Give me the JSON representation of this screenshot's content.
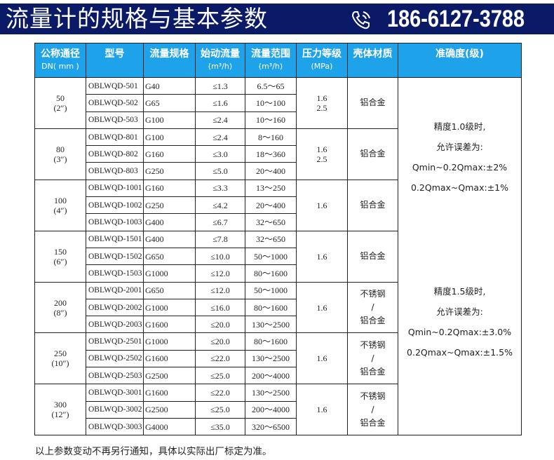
{
  "header": {
    "title": "流量计的规格与基本参数",
    "phone": "186-6127-3788",
    "phone_icon": "phone-icon"
  },
  "table": {
    "columns": [
      {
        "label": "公称通径",
        "sub": "DN( mm )"
      },
      {
        "label": "型号",
        "sub": ""
      },
      {
        "label": "流量规格",
        "sub": ""
      },
      {
        "label": "始动流量",
        "sub": "(m³/h)"
      },
      {
        "label": "流量范围",
        "sub": "(m³/h)"
      },
      {
        "label": "压力等级",
        "sub": "(MPa)"
      },
      {
        "label": "壳体材质",
        "sub": ""
      },
      {
        "label": "准确度(级)",
        "sub": ""
      }
    ],
    "groups": [
      {
        "dn": "50",
        "inch": "(2″)",
        "pressure": [
          "1.6",
          "2.5"
        ],
        "material": [
          "铝合金"
        ],
        "rows": [
          [
            "OBLWQD-501",
            "G40",
            "≤1.3",
            "6.5～65"
          ],
          [
            "OBLWQD-502",
            "G65",
            "≤1.6",
            "10～100"
          ],
          [
            "OBLWQD-503",
            "G100",
            "≤2.4",
            "10～160"
          ]
        ]
      },
      {
        "dn": "80",
        "inch": "(3″)",
        "pressure": [
          "1.6",
          "2.5"
        ],
        "material": [
          "铝合金"
        ],
        "rows": [
          [
            "OBLWQD-801",
            "G100",
            "≤2.4",
            "8～160"
          ],
          [
            "OBLWQD-802",
            "G160",
            "≤3.0",
            "18～360"
          ],
          [
            "OBLWQD-803",
            "G250",
            "≤5.0",
            "20～400"
          ]
        ]
      },
      {
        "dn": "100",
        "inch": "(4″)",
        "pressure": [
          "1.6"
        ],
        "material": [
          "铝合金"
        ],
        "rows": [
          [
            "OBLWQD-1001",
            "G160",
            "≤3.3",
            "13～250"
          ],
          [
            "OBLWQD-1002",
            "G250",
            "≤4.2",
            "20～400"
          ],
          [
            "OBLWQD-1003",
            "G400",
            "≤6.7",
            "32～650"
          ]
        ]
      },
      {
        "dn": "150",
        "inch": "(6″)",
        "pressure": [
          "1.6"
        ],
        "material": [
          "铝合金"
        ],
        "rows": [
          [
            "OBLWQD-1501",
            "G400",
            "≤7.8",
            "32～650"
          ],
          [
            "OBLWQD-1502",
            "G650",
            "≤10.0",
            "50～1000"
          ],
          [
            "OBLWQD-1503",
            "G1000",
            "≤12.0",
            "80～1600"
          ]
        ]
      },
      {
        "dn": "200",
        "inch": "(8″)",
        "pressure": [
          "1.6"
        ],
        "material": [
          "不锈钢",
          "/",
          "铝合金"
        ],
        "rows": [
          [
            "OBLWQD-2001",
            "G650",
            "≤12.0",
            "50～1000"
          ],
          [
            "OBLWQD-2002",
            "G1000",
            "≤16.0",
            "80～1600"
          ],
          [
            "OBLWQD-2003",
            "G1600",
            "≤20.0",
            "130～2500"
          ]
        ]
      },
      {
        "dn": "250",
        "inch": "(10″)",
        "pressure": [
          "1.6"
        ],
        "material": [
          "不锈钢",
          "/",
          "铝合金"
        ],
        "rows": [
          [
            "OBLWQD-2501",
            "G1000",
            "≤20.0",
            "80～1600"
          ],
          [
            "OBLWQD-2502",
            "G1600",
            "≤22.0",
            "130～2500"
          ],
          [
            "OBLWQD-2503",
            "G2500",
            "≤25.0",
            "200～4000"
          ]
        ]
      },
      {
        "dn": "300",
        "inch": "(12″)",
        "pressure": [
          "1.6"
        ],
        "material": [
          "不锈钢",
          "/",
          "铝合金"
        ],
        "rows": [
          [
            "OBLWQD-3001",
            "G1600",
            "≤22.0",
            "130～2500"
          ],
          [
            "OBLWQD-3002",
            "G2500",
            "≤25.0",
            "200～4000"
          ],
          [
            "OBLWQD-3003",
            "G4000",
            "≤35.0",
            "320～6500"
          ]
        ]
      }
    ],
    "accuracy": [
      [
        "精度1.0级时,",
        "允许误差为:",
        "Qmin~0.2Qmax:±2%",
        "0.2Qmax~Qmax:±1%"
      ],
      [
        "精度1.5级时,",
        "允许误差为:",
        "Qmin~0.2Qmax:±3.0%",
        "0.2Qmax~Qmax:±1.5%"
      ]
    ]
  },
  "note": "以上参数变动不再另行通知，具体以实际出厂标定为准。"
}
